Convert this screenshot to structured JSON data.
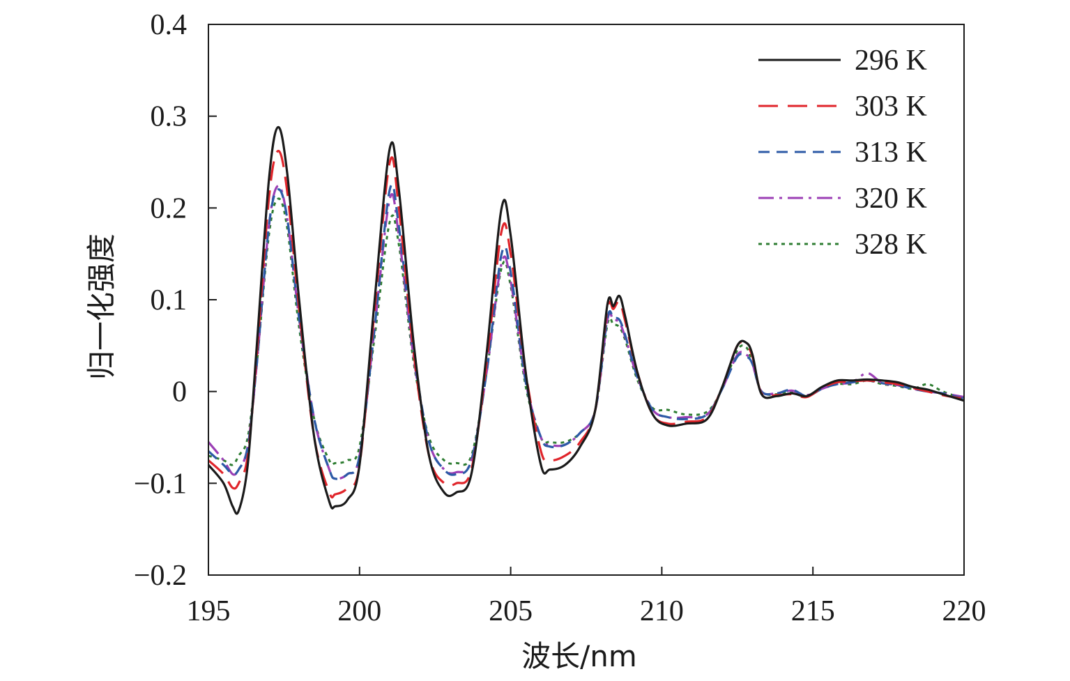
{
  "chart_data": {
    "type": "line",
    "title": "",
    "xlabel": "波长/nm",
    "ylabel": "归一化强度",
    "xlim": [
      195,
      220
    ],
    "ylim": [
      -0.2,
      0.4
    ],
    "x_ticks": [
      195,
      200,
      205,
      210,
      215,
      220
    ],
    "x_tick_labels": [
      "195",
      "200",
      "205",
      "210",
      "215",
      "220"
    ],
    "y_ticks": [
      0.4,
      0.3,
      0.2,
      0.1,
      0,
      -0.1,
      -0.2
    ],
    "y_tick_labels": [
      "0.4",
      "0.3",
      "0.2",
      "0.1",
      "0",
      "−0.1",
      "−0.2"
    ],
    "grid": false,
    "legend_position": "top-right",
    "series": [
      {
        "name": "296 K",
        "color": "#1a1a1a",
        "dash": "solid",
        "x": [
          195,
          195.5,
          195.8,
          196.0,
          196.3,
          196.6,
          197.0,
          197.3,
          197.6,
          198.0,
          198.5,
          199.0,
          199.2,
          199.6,
          200.0,
          200.5,
          201.0,
          201.3,
          201.8,
          202.3,
          202.8,
          203.2,
          203.7,
          204.2,
          204.7,
          205.0,
          205.5,
          206.0,
          206.3,
          206.8,
          207.3,
          207.8,
          208.2,
          208.4,
          208.6,
          208.8,
          209.2,
          209.7,
          210.2,
          210.8,
          211.5,
          212.0,
          212.5,
          212.8,
          213.0,
          213.3,
          213.8,
          214.3,
          214.8,
          215.3,
          215.8,
          216.3,
          216.8,
          217.3,
          217.8,
          218.3,
          218.8,
          219.3,
          220
        ],
        "y": [
          -0.08,
          -0.1,
          -0.125,
          -0.13,
          -0.08,
          0.05,
          0.23,
          0.288,
          0.24,
          0.1,
          -0.05,
          -0.12,
          -0.125,
          -0.118,
          -0.08,
          0.1,
          0.265,
          0.22,
          0.05,
          -0.07,
          -0.11,
          -0.11,
          -0.09,
          0.04,
          0.2,
          0.17,
          0.02,
          -0.08,
          -0.085,
          -0.08,
          -0.06,
          -0.02,
          0.095,
          0.093,
          0.104,
          0.08,
          0.02,
          -0.025,
          -0.037,
          -0.035,
          -0.03,
          0.005,
          0.05,
          0.053,
          0.04,
          -0.003,
          -0.005,
          -0.002,
          -0.005,
          0.005,
          0.012,
          0.012,
          0.013,
          0.012,
          0.01,
          0.005,
          0.002,
          -0.003,
          -0.01
        ]
      },
      {
        "name": "303 K",
        "color": "#e0252b",
        "dash": "28 14",
        "x": [
          195,
          195.5,
          195.8,
          196.0,
          196.3,
          196.6,
          197.0,
          197.3,
          197.6,
          198.0,
          198.5,
          199.0,
          199.2,
          199.6,
          200.0,
          200.5,
          201.0,
          201.3,
          201.8,
          202.3,
          202.8,
          203.2,
          203.7,
          204.2,
          204.7,
          205.0,
          205.5,
          206.0,
          206.3,
          206.8,
          207.3,
          207.8,
          208.2,
          208.4,
          208.6,
          208.8,
          209.2,
          209.7,
          210.2,
          210.8,
          211.5,
          212.0,
          212.5,
          212.8,
          213.0,
          213.3,
          213.8,
          214.3,
          214.8,
          215.3,
          215.8,
          216.3,
          216.8,
          217.3,
          217.8,
          218.3,
          218.8,
          219.3,
          220
        ],
        "y": [
          -0.075,
          -0.09,
          -0.105,
          -0.1,
          -0.07,
          0.04,
          0.21,
          0.262,
          0.22,
          0.09,
          -0.05,
          -0.11,
          -0.112,
          -0.105,
          -0.08,
          0.09,
          0.25,
          0.2,
          0.04,
          -0.07,
          -0.1,
          -0.1,
          -0.085,
          0.03,
          0.175,
          0.15,
          0.02,
          -0.065,
          -0.075,
          -0.07,
          -0.055,
          -0.02,
          0.09,
          0.09,
          0.098,
          0.075,
          0.02,
          -0.025,
          -0.035,
          -0.033,
          -0.028,
          0.005,
          0.05,
          0.05,
          0.038,
          -0.002,
          -0.004,
          -0.003,
          -0.006,
          0.004,
          0.01,
          0.011,
          0.012,
          0.01,
          0.008,
          0.004,
          0.0,
          -0.004,
          -0.008
        ]
      },
      {
        "name": "313 K",
        "color": "#2c5aa6",
        "dash": "16 10",
        "x": [
          195,
          195.5,
          195.8,
          196.0,
          196.3,
          196.6,
          197.0,
          197.3,
          197.6,
          198.0,
          198.5,
          199.0,
          199.2,
          199.6,
          200.0,
          200.5,
          201.0,
          201.3,
          201.8,
          202.3,
          202.8,
          203.2,
          203.7,
          204.2,
          204.7,
          205.0,
          205.5,
          206.0,
          206.3,
          206.8,
          207.3,
          207.8,
          208.2,
          208.4,
          208.6,
          208.8,
          209.2,
          209.7,
          210.2,
          210.8,
          211.5,
          212.0,
          212.5,
          212.8,
          213.0,
          213.3,
          213.8,
          214.3,
          214.8,
          215.3,
          215.8,
          216.3,
          216.8,
          217.3,
          217.8,
          218.3,
          218.8,
          219.3,
          220
        ],
        "y": [
          -0.065,
          -0.08,
          -0.09,
          -0.085,
          -0.06,
          0.03,
          0.18,
          0.22,
          0.19,
          0.08,
          -0.03,
          -0.085,
          -0.095,
          -0.09,
          -0.07,
          0.07,
          0.22,
          0.18,
          0.04,
          -0.055,
          -0.085,
          -0.09,
          -0.075,
          0.02,
          0.15,
          0.13,
          0.01,
          -0.05,
          -0.06,
          -0.058,
          -0.045,
          -0.02,
          0.08,
          0.08,
          0.078,
          0.06,
          0.015,
          -0.02,
          -0.028,
          -0.03,
          -0.025,
          0.003,
          0.038,
          0.038,
          0.03,
          0.0,
          -0.002,
          0.002,
          -0.005,
          0.003,
          0.008,
          0.01,
          0.012,
          0.009,
          0.007,
          0.003,
          0.0,
          -0.002,
          -0.008
        ]
      },
      {
        "name": "320 K",
        "color": "#9b3fb5",
        "dash": "22 8 4 8",
        "x": [
          195,
          195.5,
          195.8,
          196.0,
          196.3,
          196.6,
          197.0,
          197.3,
          197.6,
          198.0,
          198.5,
          199.0,
          199.2,
          199.6,
          200.0,
          200.5,
          201.0,
          201.3,
          201.8,
          202.3,
          202.8,
          203.2,
          203.7,
          204.2,
          204.7,
          205.0,
          205.5,
          206.0,
          206.3,
          206.8,
          207.3,
          207.8,
          208.2,
          208.4,
          208.6,
          208.8,
          209.2,
          209.7,
          210.2,
          210.8,
          211.5,
          212.0,
          212.5,
          212.8,
          213.0,
          213.3,
          213.8,
          214.3,
          214.8,
          215.3,
          215.8,
          216.3,
          216.8,
          217.3,
          217.8,
          218.3,
          218.8,
          219.3,
          220
        ],
        "y": [
          -0.055,
          -0.075,
          -0.09,
          -0.085,
          -0.06,
          0.03,
          0.18,
          0.224,
          0.19,
          0.08,
          -0.03,
          -0.085,
          -0.095,
          -0.09,
          -0.07,
          0.07,
          0.21,
          0.17,
          0.035,
          -0.055,
          -0.085,
          -0.088,
          -0.075,
          0.02,
          0.14,
          0.12,
          0.01,
          -0.05,
          -0.058,
          -0.058,
          -0.045,
          -0.02,
          0.078,
          0.078,
          0.075,
          0.058,
          0.015,
          -0.02,
          -0.028,
          -0.028,
          -0.025,
          0.003,
          0.04,
          0.04,
          0.03,
          0.0,
          -0.002,
          0.001,
          -0.004,
          0.003,
          0.008,
          0.01,
          0.02,
          0.009,
          0.007,
          0.003,
          0.0,
          -0.002,
          -0.006
        ]
      },
      {
        "name": "328 K",
        "color": "#2e7d32",
        "dash": "5 6",
        "x": [
          195,
          195.5,
          195.8,
          196.0,
          196.3,
          196.6,
          197.0,
          197.3,
          197.6,
          198.0,
          198.5,
          199.0,
          199.2,
          199.6,
          200.0,
          200.5,
          201.0,
          201.3,
          201.8,
          202.3,
          202.8,
          203.2,
          203.7,
          204.2,
          204.7,
          205.0,
          205.5,
          206.0,
          206.3,
          206.8,
          207.3,
          207.8,
          208.2,
          208.4,
          208.6,
          208.8,
          209.2,
          209.7,
          210.2,
          210.8,
          211.5,
          212.0,
          212.5,
          212.8,
          213.0,
          213.3,
          213.8,
          214.3,
          214.8,
          215.3,
          215.8,
          216.3,
          216.8,
          217.3,
          217.8,
          218.3,
          218.8,
          219.3,
          220
        ],
        "y": [
          -0.07,
          -0.075,
          -0.08,
          -0.07,
          -0.05,
          0.03,
          0.17,
          0.21,
          0.18,
          0.07,
          -0.03,
          -0.075,
          -0.078,
          -0.075,
          -0.06,
          0.06,
          0.185,
          0.16,
          0.03,
          -0.05,
          -0.075,
          -0.078,
          -0.07,
          0.02,
          0.135,
          0.115,
          0.005,
          -0.05,
          -0.055,
          -0.055,
          -0.045,
          -0.02,
          0.073,
          0.073,
          0.07,
          0.055,
          0.012,
          -0.018,
          -0.02,
          -0.025,
          -0.022,
          0.003,
          0.045,
          0.048,
          0.03,
          0.0,
          -0.003,
          0.0,
          -0.005,
          0.003,
          0.008,
          0.008,
          0.012,
          0.008,
          0.006,
          0.003,
          0.008,
          0.0,
          -0.008
        ]
      }
    ]
  }
}
